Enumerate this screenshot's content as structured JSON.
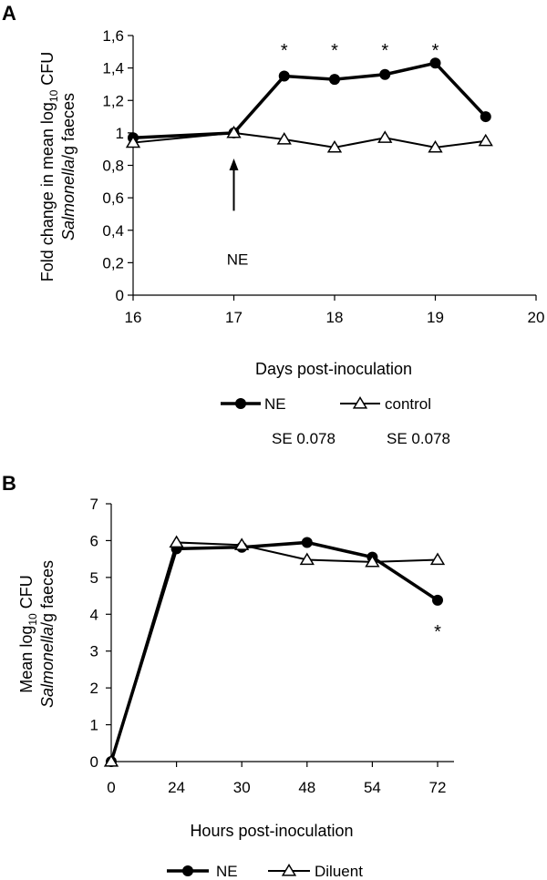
{
  "chart_data": [
    {
      "panel": "A",
      "type": "line",
      "title": "",
      "xlabel": "Days post-inoculation",
      "ylabel_prefix": "Fold change in mean log",
      "ylabel_sub": "10",
      "ylabel_suffix": " CFU",
      "ylabel_line2_italic": "Salmonella",
      "ylabel_line2_rest": "/g faeces",
      "xlim": [
        16,
        20
      ],
      "ylim": [
        0,
        1.6
      ],
      "x_ticks": [
        16,
        17,
        18,
        19,
        20
      ],
      "y_ticks": [
        "0",
        "0,2",
        "0,4",
        "0,6",
        "0,8",
        "1",
        "1,2",
        "1,4",
        "1,6"
      ],
      "y_tick_values": [
        0,
        0.2,
        0.4,
        0.6,
        0.8,
        1.0,
        1.2,
        1.4,
        1.6
      ],
      "series": [
        {
          "name": "NE",
          "marker": "circle-filled",
          "x": [
            16,
            17,
            17.5,
            18,
            18.5,
            19,
            19.5
          ],
          "y": [
            0.97,
            1.0,
            1.35,
            1.33,
            1.36,
            1.43,
            1.1
          ]
        },
        {
          "name": "control",
          "marker": "triangle-open",
          "x": [
            16,
            17,
            17.5,
            18,
            18.5,
            19,
            19.5
          ],
          "y": [
            0.94,
            1.0,
            0.96,
            0.91,
            0.97,
            0.91,
            0.95
          ]
        }
      ],
      "significance": [
        {
          "x": 17.5,
          "label": "*"
        },
        {
          "x": 18,
          "label": "*"
        },
        {
          "x": 18.5,
          "label": "*"
        },
        {
          "x": 19,
          "label": "*"
        }
      ],
      "annotation": {
        "label": "NE",
        "x": 17,
        "y": 0.2,
        "arrow_to_y": 0.82
      },
      "se_labels": [
        {
          "series": "NE",
          "text": "SE 0.078"
        },
        {
          "series": "control",
          "text": "SE  0.078"
        }
      ]
    },
    {
      "panel": "B",
      "type": "line",
      "title": "",
      "xlabel": "Hours post-inoculation",
      "ylabel_prefix": "Mean log",
      "ylabel_sub": "10",
      "ylabel_suffix": " CFU",
      "ylabel_line2_italic": "Salmonella",
      "ylabel_line2_rest": "/g faeces",
      "categories": [
        "0",
        "24",
        "30",
        "48",
        "54",
        "72"
      ],
      "ylim": [
        0,
        7
      ],
      "y_ticks": [
        "0",
        "1",
        "2",
        "3",
        "4",
        "5",
        "6",
        "7"
      ],
      "y_tick_values": [
        0,
        1,
        2,
        3,
        4,
        5,
        6,
        7
      ],
      "series": [
        {
          "name": "NE",
          "marker": "circle-filled",
          "values": [
            0,
            5.78,
            5.82,
            5.95,
            5.55,
            4.38
          ]
        },
        {
          "name": "Diluent",
          "marker": "triangle-open",
          "values": [
            0,
            5.95,
            5.88,
            5.48,
            5.42,
            5.48
          ]
        }
      ],
      "significance": [
        {
          "category": "72",
          "label": "*"
        }
      ]
    }
  ]
}
